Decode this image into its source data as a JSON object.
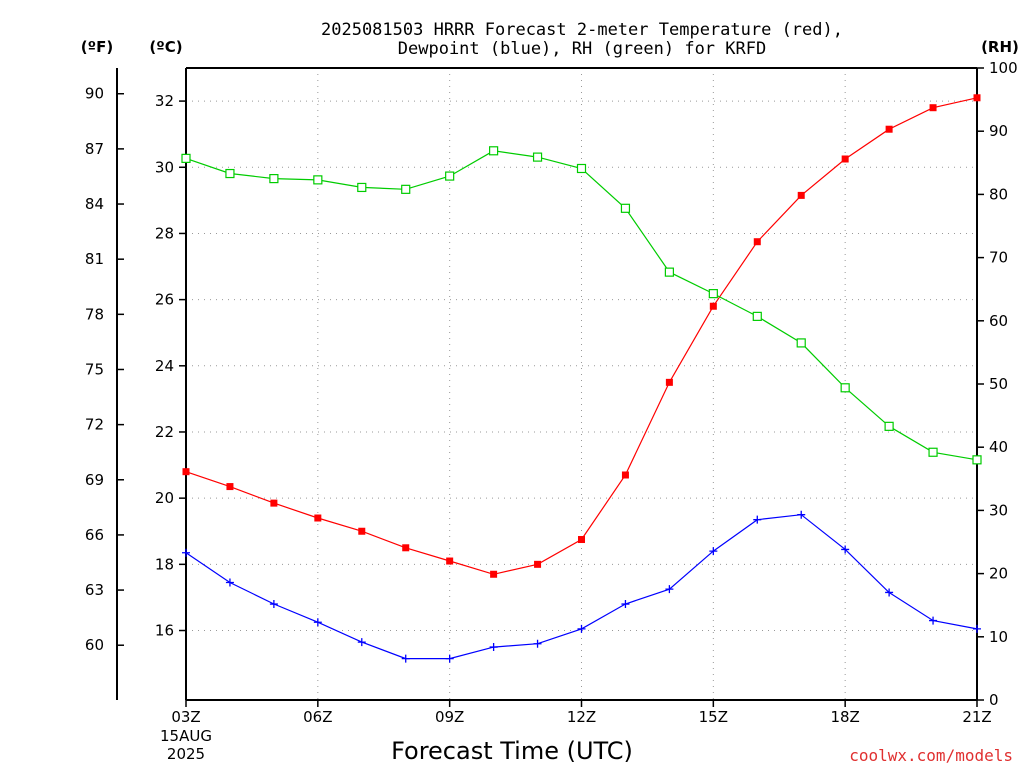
{
  "chart_data": {
    "type": "line",
    "title_line1": "2025081503 HRRR Forecast 2-meter Temperature (red),",
    "title_line2": "Dewpoint (blue), RH (green) for KRFD",
    "xlabel": "Forecast Time (UTC)",
    "credit": "coolwx.com/models",
    "date_label": [
      "15AUG",
      "2025"
    ],
    "units": {
      "fahrenheit": "(ºF)",
      "celsius": "(ºC)",
      "rh": "(RH)"
    },
    "x_hours": [
      0,
      1,
      2,
      3,
      4,
      5,
      6,
      7,
      8,
      9,
      10,
      11,
      12,
      13,
      14,
      15,
      16,
      17,
      18
    ],
    "x_ticks": [
      {
        "hour": 0,
        "label": "03Z"
      },
      {
        "hour": 3,
        "label": "06Z"
      },
      {
        "hour": 6,
        "label": "09Z"
      },
      {
        "hour": 9,
        "label": "12Z"
      },
      {
        "hour": 12,
        "label": "15Z"
      },
      {
        "hour": 15,
        "label": "18Z"
      },
      {
        "hour": 18,
        "label": "21Z"
      }
    ],
    "celsius_axis": {
      "range": [
        13.9,
        33.0
      ],
      "ticks": [
        "16",
        "18",
        "20",
        "22",
        "24",
        "26",
        "28",
        "30",
        "32"
      ]
    },
    "fahrenheit_axis": {
      "ticks": [
        "60",
        "63",
        "66",
        "69",
        "72",
        "75",
        "78",
        "81",
        "84",
        "87",
        "90"
      ]
    },
    "rh_axis": {
      "range": [
        0,
        100
      ],
      "ticks": [
        "0",
        "10",
        "20",
        "30",
        "40",
        "50",
        "60",
        "70",
        "80",
        "90",
        "100"
      ]
    },
    "grid": true,
    "colors": {
      "temperature": "#ff0000",
      "dewpoint": "#0000ff",
      "rh": "#00cc00",
      "grid": "#999999",
      "credit": "#e03030"
    },
    "series": [
      {
        "key": "temperature",
        "axis": "celsius",
        "values": [
          20.8,
          20.35,
          19.85,
          19.4,
          19.0,
          18.5,
          18.1,
          17.7,
          18.0,
          18.75,
          20.7,
          23.5,
          25.8,
          27.75,
          29.15,
          30.25,
          31.15,
          31.8,
          32.1
        ]
      },
      {
        "key": "dewpoint",
        "axis": "celsius",
        "values": [
          18.35,
          17.45,
          16.8,
          16.25,
          15.65,
          15.15,
          15.15,
          15.5,
          15.6,
          16.05,
          16.8,
          17.25,
          18.4,
          19.35,
          19.5,
          18.45,
          17.15,
          16.3,
          16.05
        ]
      },
      {
        "key": "rh",
        "axis": "rh",
        "values": [
          85.7,
          83.3,
          82.5,
          82.3,
          81.1,
          80.8,
          82.9,
          86.9,
          85.9,
          84.1,
          77.8,
          67.7,
          64.3,
          60.7,
          56.5,
          49.4,
          43.3,
          39.2,
          38.0
        ]
      }
    ]
  }
}
